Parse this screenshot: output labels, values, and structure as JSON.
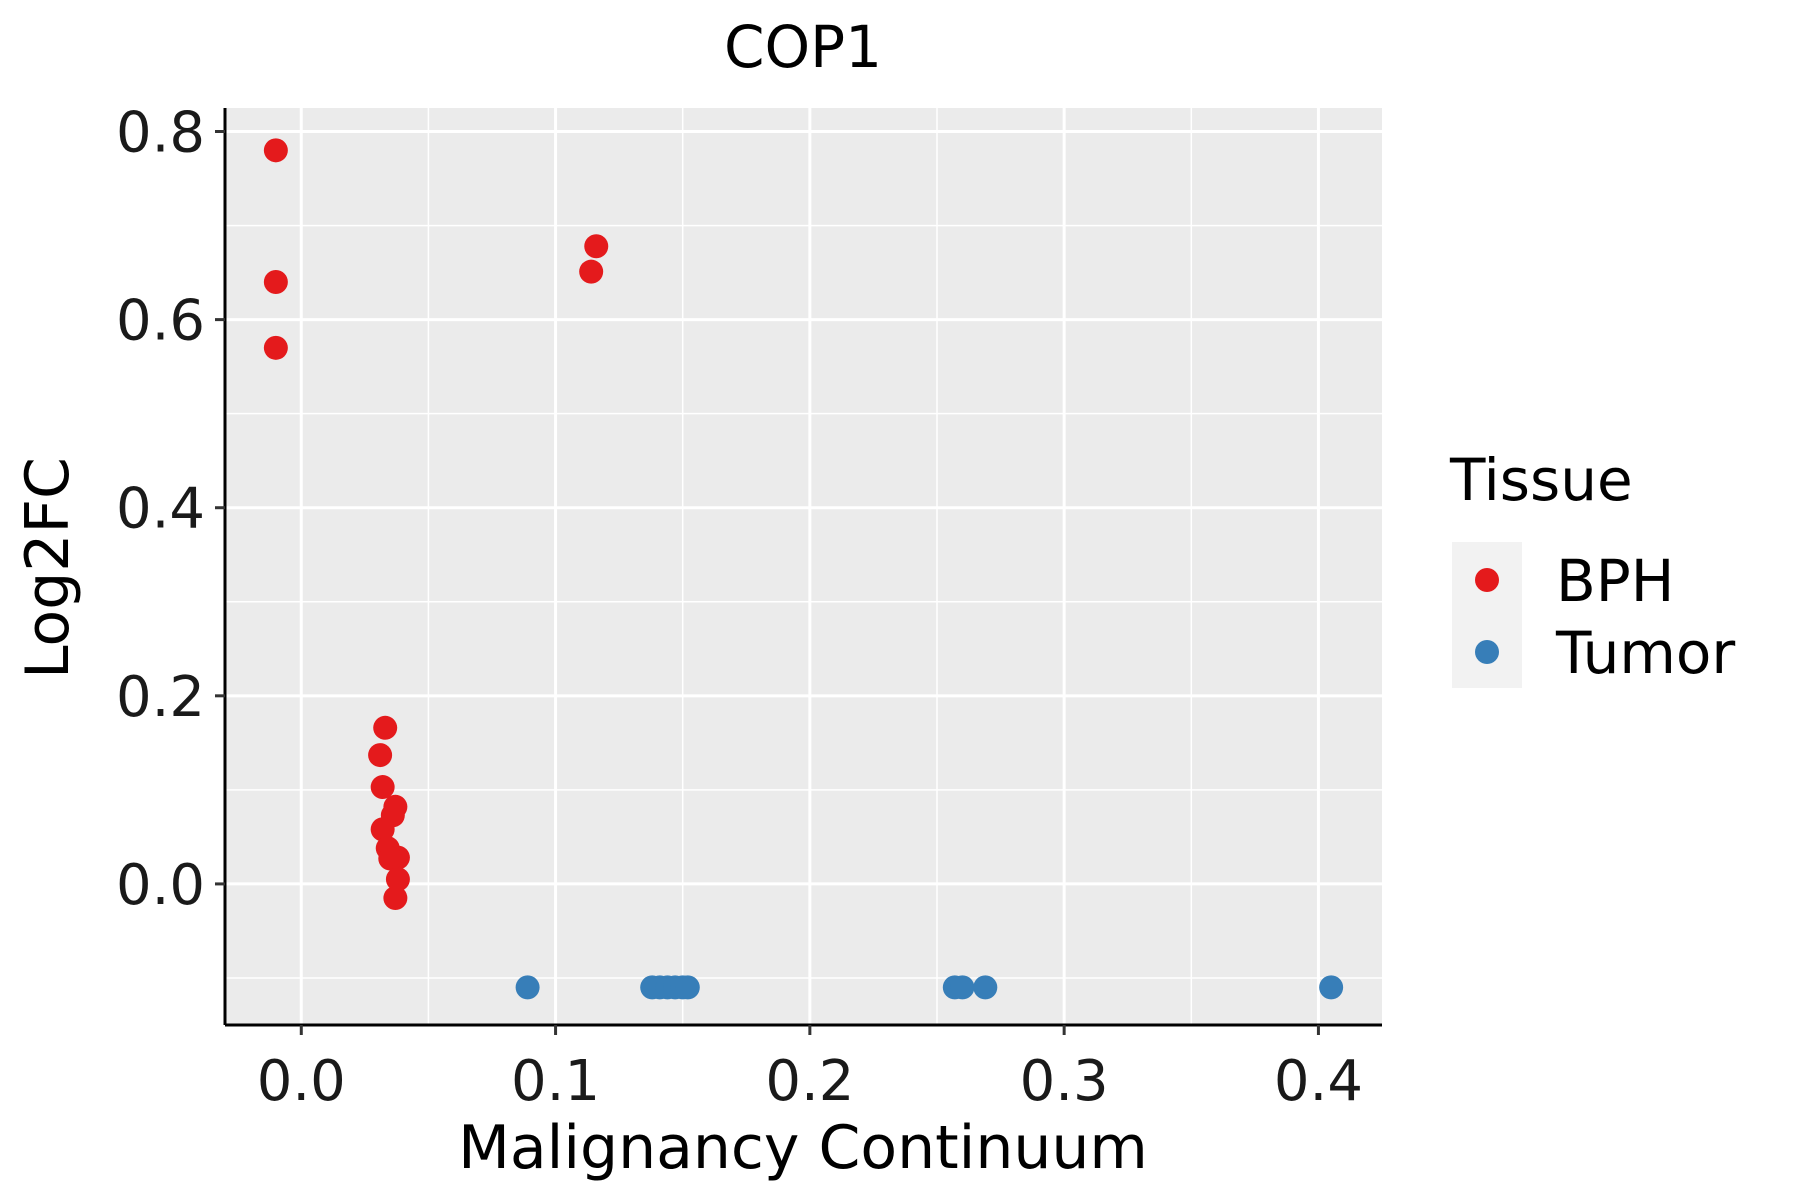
{
  "chart_data": {
    "type": "scatter",
    "title": "COP1",
    "xlabel": "Malignancy Continuum",
    "ylabel": "Log2FC",
    "xlim": [
      -0.03,
      0.425
    ],
    "ylim": [
      -0.15,
      0.825
    ],
    "x_ticks": [
      0.0,
      0.1,
      0.2,
      0.3,
      0.4
    ],
    "x_tick_labels": [
      "0.0",
      "0.1",
      "0.2",
      "0.3",
      "0.4"
    ],
    "y_ticks": [
      0.0,
      0.2,
      0.4,
      0.6,
      0.8
    ],
    "y_tick_labels": [
      "0.0",
      "0.2",
      "0.4",
      "0.6",
      "0.8"
    ],
    "grid": true,
    "legend": {
      "title": "Tissue",
      "position": "right",
      "entries": [
        "BPH",
        "Tumor"
      ]
    },
    "series": [
      {
        "name": "BPH",
        "color": "#E41A1C",
        "points": [
          {
            "x": -0.01,
            "y": 0.78
          },
          {
            "x": -0.01,
            "y": 0.64
          },
          {
            "x": -0.01,
            "y": 0.57
          },
          {
            "x": 0.116,
            "y": 0.678
          },
          {
            "x": 0.114,
            "y": 0.651
          },
          {
            "x": 0.033,
            "y": 0.166
          },
          {
            "x": 0.031,
            "y": 0.137
          },
          {
            "x": 0.032,
            "y": 0.103
          },
          {
            "x": 0.037,
            "y": 0.082
          },
          {
            "x": 0.036,
            "y": 0.073
          },
          {
            "x": 0.032,
            "y": 0.058
          },
          {
            "x": 0.034,
            "y": 0.038
          },
          {
            "x": 0.038,
            "y": 0.028
          },
          {
            "x": 0.035,
            "y": 0.027
          },
          {
            "x": 0.038,
            "y": 0.005
          },
          {
            "x": 0.037,
            "y": -0.015
          }
        ]
      },
      {
        "name": "Tumor",
        "color": "#377EB8",
        "points": [
          {
            "x": 0.089,
            "y": -0.11
          },
          {
            "x": 0.138,
            "y": -0.11
          },
          {
            "x": 0.141,
            "y": -0.11
          },
          {
            "x": 0.144,
            "y": -0.11
          },
          {
            "x": 0.147,
            "y": -0.11
          },
          {
            "x": 0.15,
            "y": -0.11
          },
          {
            "x": 0.152,
            "y": -0.11
          },
          {
            "x": 0.257,
            "y": -0.11
          },
          {
            "x": 0.26,
            "y": -0.11
          },
          {
            "x": 0.269,
            "y": -0.11
          },
          {
            "x": 0.405,
            "y": -0.11
          }
        ]
      }
    ]
  }
}
